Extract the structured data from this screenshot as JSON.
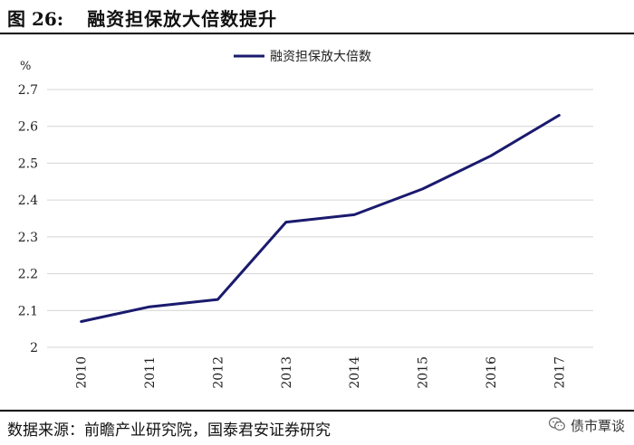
{
  "figure": {
    "number": "图 26:",
    "title": "融资担保放大倍数提升"
  },
  "source": "数据来源：前瞻产业研究院，国泰君安证券研究",
  "watermark": {
    "icon": "wechat-icon",
    "text": "债市覃谈"
  },
  "chart_data": {
    "type": "line",
    "title": "",
    "xlabel": "",
    "ylabel": "%",
    "categories": [
      "2010",
      "2011",
      "2012",
      "2013",
      "2014",
      "2015",
      "2016",
      "2017"
    ],
    "series": [
      {
        "name": "融资担保放大倍数",
        "values": [
          2.07,
          2.11,
          2.13,
          2.34,
          2.36,
          2.43,
          2.52,
          2.63
        ],
        "color": "#1a1a6e"
      }
    ],
    "ylim": [
      2,
      2.7
    ],
    "yticks": [
      "2",
      "2.1",
      "2.2",
      "2.3",
      "2.4",
      "2.5",
      "2.6",
      "2.7"
    ],
    "grid": true,
    "legend": "top-center"
  }
}
